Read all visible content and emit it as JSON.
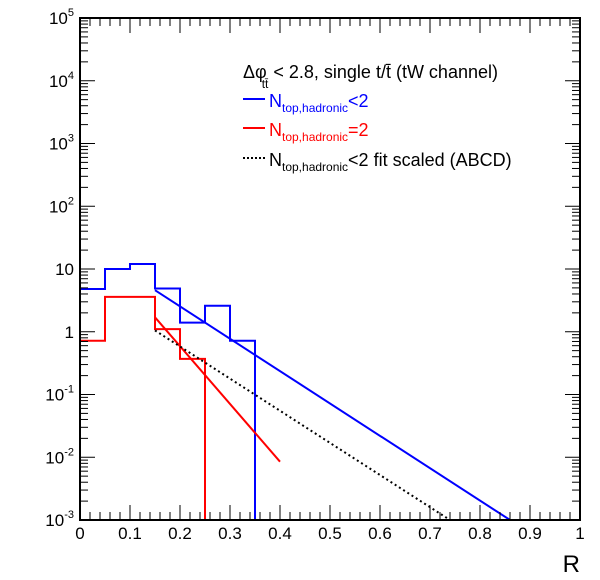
{
  "chart_data": {
    "type": "line",
    "title": "",
    "xlabel": "R",
    "ylabel": "",
    "xlim": [
      0,
      1
    ],
    "ylim": [
      0.001,
      100000
    ],
    "yscale": "log",
    "grid": false,
    "x_ticks": [
      0,
      0.1,
      0.2,
      0.3,
      0.4,
      0.5,
      0.6,
      0.7,
      0.8,
      0.9,
      1
    ],
    "x_tick_labels": [
      "0",
      "0.1",
      "0.2",
      "0.3",
      "0.4",
      "0.5",
      "0.6",
      "0.7",
      "0.8",
      "0.9",
      "1"
    ],
    "y_ticks": [
      {
        "value": 100000,
        "base": "10",
        "exp": "5"
      },
      {
        "value": 10000,
        "base": "10",
        "exp": "4"
      },
      {
        "value": 1000,
        "base": "10",
        "exp": "3"
      },
      {
        "value": 100,
        "base": "10",
        "exp": "2"
      },
      {
        "value": 10,
        "base": "10",
        "exp": ""
      },
      {
        "value": 1,
        "base": "1",
        "exp": ""
      },
      {
        "value": 0.1,
        "base": "10",
        "exp": "-1"
      },
      {
        "value": 0.01,
        "base": "10",
        "exp": "-2"
      },
      {
        "value": 0.001,
        "base": "10",
        "exp": "-3"
      }
    ],
    "legend": {
      "placement": "top-right",
      "header": {
        "prefix": "Δφ",
        "sub": "tt̄",
        "text": " < 2.8, single t/t̄ (tW channel)"
      },
      "entries": [
        {
          "name": "N_top,hadronic<2",
          "main": "N",
          "sub": "top,hadronic",
          "suffix": "<2",
          "color": "#0000ff",
          "style": "solid",
          "text_color": "#0000ff"
        },
        {
          "name": "N_top,hadronic=2",
          "main": "N",
          "sub": "top,hadronic",
          "suffix": "=2",
          "color": "#ff0000",
          "style": "solid",
          "text_color": "#ff0000"
        },
        {
          "name": "N_top,hadronic<2 fit scaled (ABCD)",
          "main": "N",
          "sub": "top,hadronic",
          "suffix": "<2 fit scaled (ABCD)",
          "color": "#000000",
          "style": "dotted",
          "text_color": "#000000"
        }
      ]
    },
    "histograms": [
      {
        "name": "N_top,hadronic<2",
        "color": "#0000ff",
        "bin_edges": [
          0,
          0.05,
          0.1,
          0.15,
          0.2,
          0.25,
          0.3,
          0.35,
          0.4,
          0.45,
          0.5,
          0.55,
          0.6,
          0.65,
          0.7,
          0.75,
          0.8,
          0.85,
          0.9,
          0.95,
          1.0
        ],
        "values": [
          4.8,
          10,
          12,
          4.9,
          1.4,
          2.6,
          0.72,
          0,
          0,
          0,
          0,
          0,
          0,
          0,
          0,
          0,
          0,
          0,
          0,
          0
        ]
      },
      {
        "name": "N_top,hadronic=2",
        "color": "#ff0000",
        "bin_edges": [
          0,
          0.05,
          0.1,
          0.15,
          0.2,
          0.25,
          0.3,
          0.35,
          0.4,
          0.45,
          0.5,
          0.55,
          0.6,
          0.65,
          0.7,
          0.75,
          0.8,
          0.85,
          0.9,
          0.95,
          1.0
        ],
        "values": [
          0.72,
          3.6,
          3.6,
          1.1,
          0.37,
          0,
          0,
          0,
          0,
          0,
          0,
          0,
          0,
          0,
          0,
          0,
          0,
          0,
          0,
          0
        ]
      }
    ],
    "fits": [
      {
        "name": "N_top,hadronic<2 exponential fit",
        "color": "#0000ff",
        "style": "solid",
        "x": [
          0.15,
          0.86
        ],
        "y": [
          4.6,
          0.001
        ]
      },
      {
        "name": "N_top,hadronic=2 exponential fit",
        "color": "#ff0000",
        "style": "solid",
        "x": [
          0.15,
          0.4
        ],
        "y": [
          1.7,
          0.0085
        ]
      },
      {
        "name": "N_top,hadronic<2 fit scaled (ABCD)",
        "color": "#000000",
        "style": "dotted",
        "x": [
          0.15,
          0.74
        ],
        "y": [
          1.05,
          0.001
        ]
      }
    ]
  }
}
